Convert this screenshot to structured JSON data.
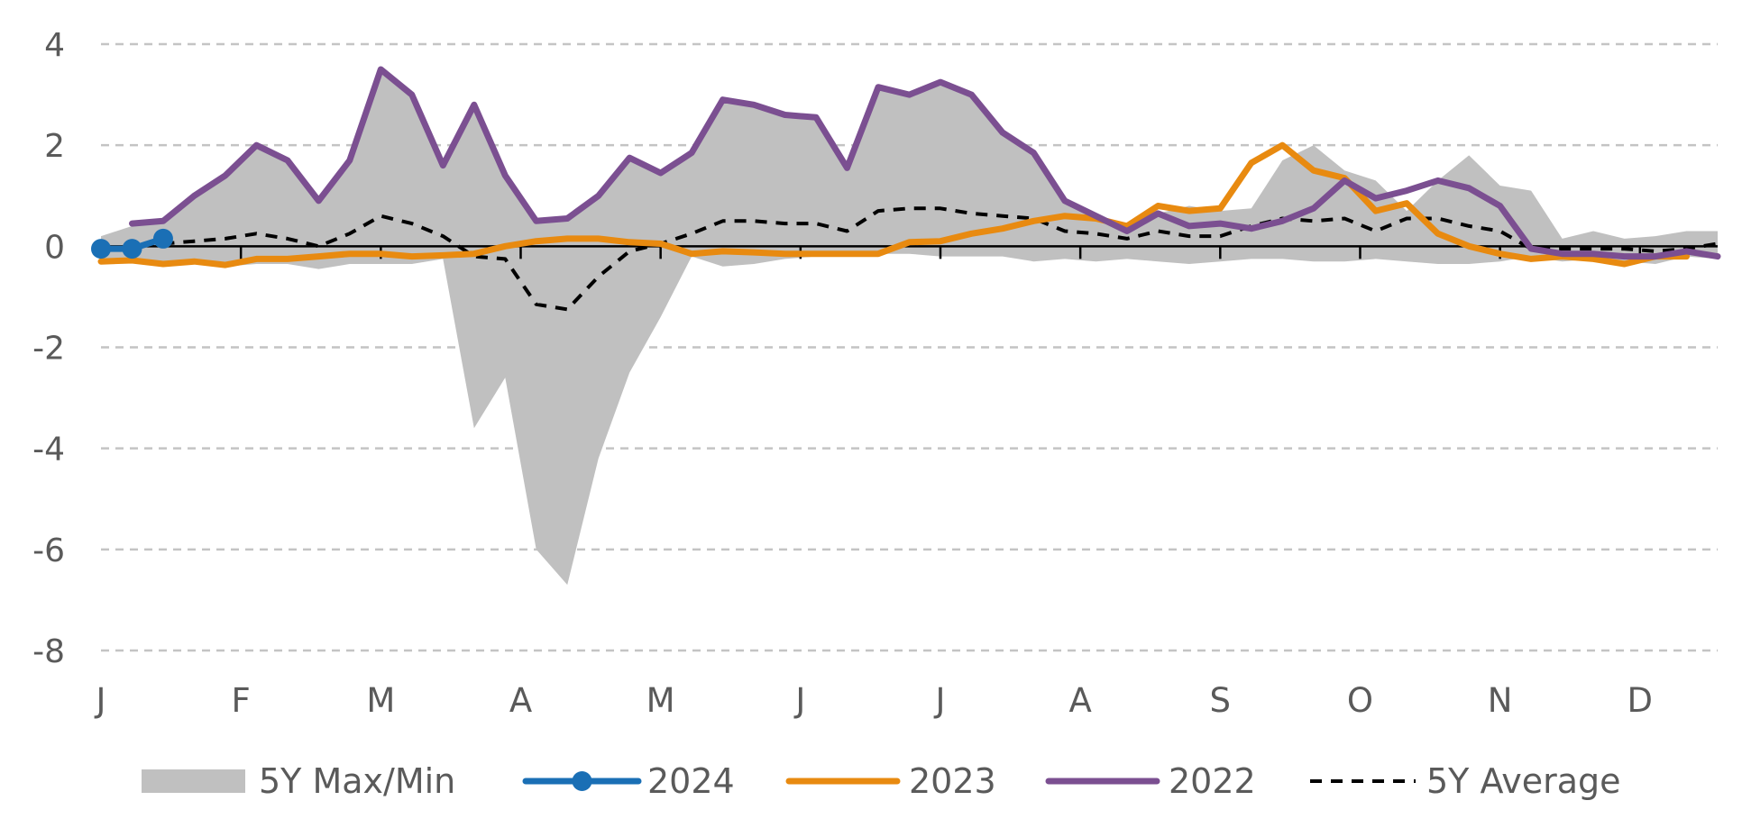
{
  "chart_data": {
    "type": "line",
    "x_weeks": [
      1,
      2,
      3,
      4,
      5,
      6,
      7,
      8,
      9,
      10,
      11,
      12,
      13,
      14,
      15,
      16,
      17,
      18,
      19,
      20,
      21,
      22,
      23,
      24,
      25,
      26,
      27,
      28,
      29,
      30,
      31,
      32,
      33,
      34,
      35,
      36,
      37,
      38,
      39,
      40,
      41,
      42,
      43,
      44,
      45,
      46,
      47,
      48,
      49,
      50,
      51,
      52,
      53
    ],
    "month_ticks": [
      {
        "label": "J",
        "week": 1
      },
      {
        "label": "F",
        "week": 5.5
      },
      {
        "label": "M",
        "week": 10
      },
      {
        "label": "A",
        "week": 14.5
      },
      {
        "label": "M",
        "week": 19
      },
      {
        "label": "J",
        "week": 23.5
      },
      {
        "label": "J",
        "week": 28
      },
      {
        "label": "A",
        "week": 32.5
      },
      {
        "label": "S",
        "week": 37
      },
      {
        "label": "O",
        "week": 41.5
      },
      {
        "label": "N",
        "week": 46
      },
      {
        "label": "D",
        "week": 50.5
      }
    ],
    "y_ticks": [
      "4",
      "2",
      "0",
      "-2",
      "-4",
      "-6",
      "-8"
    ],
    "ylim": [
      -8,
      4
    ],
    "xlim": [
      1,
      53
    ],
    "grid": "horizontal dashed",
    "legend_position": "bottom",
    "series": [
      {
        "name": "5Y Max/Min",
        "kind": "band",
        "color": "#c0c0c0",
        "upper": [
          0.2,
          0.4,
          0.5,
          1.0,
          1.4,
          2.0,
          1.7,
          0.9,
          1.7,
          3.5,
          3.0,
          1.6,
          2.8,
          1.4,
          0.5,
          0.55,
          1.0,
          1.75,
          1.45,
          1.85,
          2.9,
          2.8,
          2.6,
          2.55,
          1.55,
          3.15,
          3.0,
          3.25,
          3.0,
          2.25,
          1.85,
          0.9,
          0.6,
          0.35,
          0.65,
          0.8,
          0.7,
          0.75,
          1.7,
          2.0,
          1.5,
          1.3,
          0.7,
          1.3,
          1.8,
          1.2,
          1.1,
          0.15,
          0.3,
          0.15,
          0.2,
          0.3,
          0.3
        ],
        "lower": [
          -0.25,
          -0.3,
          -0.35,
          -0.35,
          -0.4,
          -0.35,
          -0.35,
          -0.45,
          -0.35,
          -0.35,
          -0.35,
          -0.25,
          -3.6,
          -2.6,
          -6.0,
          -6.7,
          -4.2,
          -2.5,
          -1.4,
          -0.2,
          -0.4,
          -0.35,
          -0.25,
          -0.2,
          -0.2,
          -0.15,
          -0.15,
          -0.2,
          -0.2,
          -0.2,
          -0.3,
          -0.25,
          -0.3,
          -0.25,
          -0.3,
          -0.35,
          -0.3,
          -0.25,
          -0.25,
          -0.3,
          -0.3,
          -0.25,
          -0.3,
          -0.35,
          -0.35,
          -0.3,
          -0.2,
          -0.3,
          -0.25,
          -0.3,
          -0.35,
          -0.2,
          -0.25
        ]
      },
      {
        "name": "2024",
        "kind": "line-markers",
        "color": "#1a6fb5",
        "values": [
          -0.05,
          -0.05,
          0.15
        ]
      },
      {
        "name": "2023",
        "kind": "line",
        "color": "#e88a10",
        "values": [
          -0.3,
          -0.28,
          -0.35,
          -0.3,
          -0.37,
          -0.25,
          -0.25,
          -0.2,
          -0.15,
          -0.15,
          -0.2,
          -0.18,
          -0.15,
          0.0,
          0.1,
          0.15,
          0.15,
          0.08,
          0.05,
          -0.15,
          -0.1,
          -0.12,
          -0.15,
          -0.15,
          -0.15,
          -0.15,
          0.08,
          0.1,
          0.25,
          0.35,
          0.5,
          0.6,
          0.55,
          0.4,
          0.8,
          0.7,
          0.75,
          1.65,
          2.0,
          1.5,
          1.35,
          0.7,
          0.85,
          0.25,
          0.0,
          -0.15,
          -0.25,
          -0.2,
          -0.25,
          -0.35,
          -0.2,
          -0.2,
          null
        ]
      },
      {
        "name": "2022",
        "kind": "line",
        "color": "#7b4f91",
        "values": [
          null,
          0.45,
          0.5,
          1.0,
          1.4,
          2.0,
          1.7,
          0.9,
          1.7,
          3.5,
          3.0,
          1.6,
          2.8,
          1.4,
          0.5,
          0.55,
          1.0,
          1.75,
          1.45,
          1.85,
          2.9,
          2.8,
          2.6,
          2.55,
          1.55,
          3.15,
          3.0,
          3.25,
          3.0,
          2.25,
          1.85,
          0.9,
          0.6,
          0.3,
          0.65,
          0.4,
          0.45,
          0.35,
          0.5,
          0.75,
          1.3,
          0.95,
          1.1,
          1.3,
          1.15,
          0.8,
          -0.05,
          -0.15,
          -0.15,
          -0.2,
          -0.2,
          -0.1,
          -0.2
        ]
      },
      {
        "name": "5Y Average",
        "kind": "dashed",
        "color": "#000000",
        "values": [
          -0.1,
          0.0,
          0.05,
          0.1,
          0.15,
          0.25,
          0.15,
          0.0,
          0.25,
          0.6,
          0.45,
          0.2,
          -0.2,
          -0.25,
          -1.15,
          -1.25,
          -0.6,
          -0.1,
          0.05,
          0.25,
          0.5,
          0.5,
          0.45,
          0.45,
          0.3,
          0.7,
          0.75,
          0.75,
          0.65,
          0.6,
          0.55,
          0.3,
          0.25,
          0.15,
          0.3,
          0.2,
          0.2,
          0.4,
          0.55,
          0.5,
          0.55,
          0.3,
          0.55,
          0.55,
          0.4,
          0.3,
          -0.05,
          -0.05,
          -0.05,
          -0.05,
          -0.1,
          -0.05,
          0.05
        ]
      }
    ]
  }
}
